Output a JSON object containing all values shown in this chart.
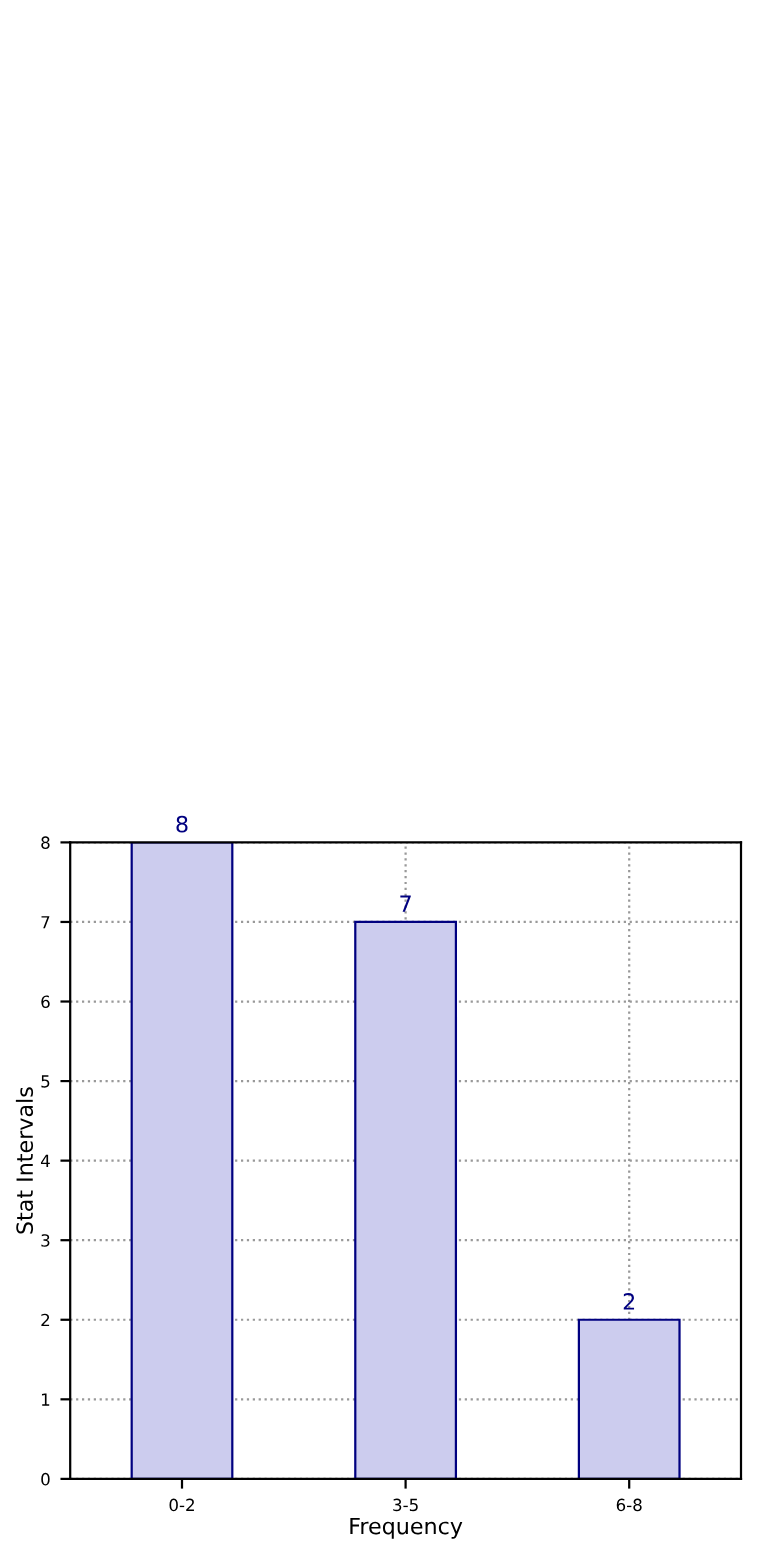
{
  "chart_data": {
    "type": "bar",
    "xlabel": "Frequency",
    "ylabel": "Stat Intervals",
    "categories": [
      "0-2",
      "3-5",
      "6-8"
    ],
    "values": [
      8,
      7,
      2
    ],
    "color": "#ccccee",
    "ylim": [
      0,
      8
    ],
    "yticks": [
      0,
      1,
      2,
      3,
      4,
      5,
      6,
      7,
      8
    ],
    "grid": true,
    "data_labels": true
  }
}
